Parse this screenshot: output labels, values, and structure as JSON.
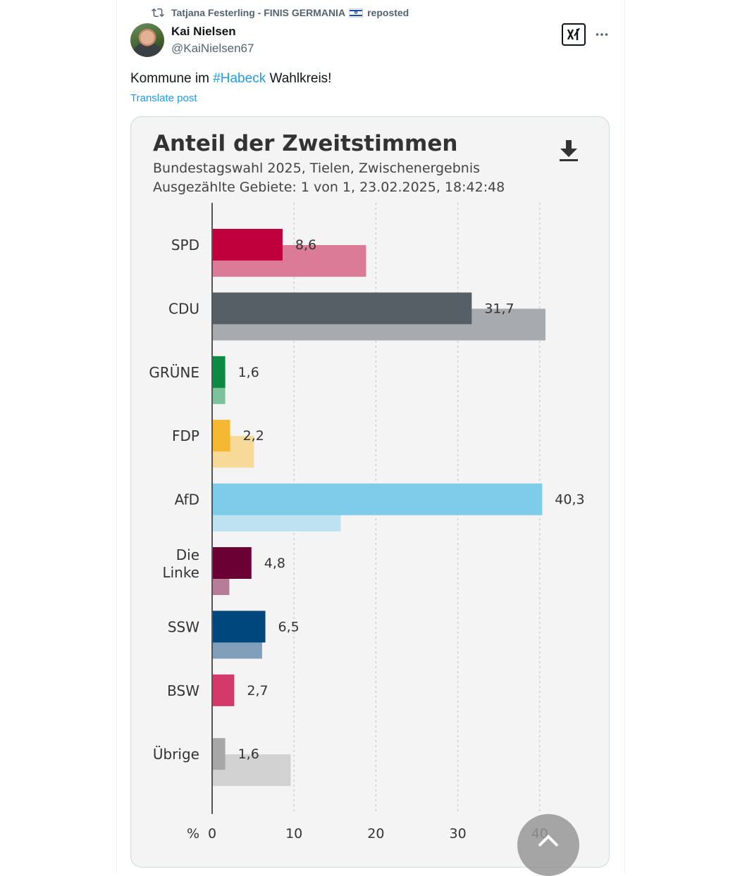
{
  "repost": {
    "user": "Tatjana Festerling - FINIS GERMANIA",
    "suffix": "reposted"
  },
  "author": {
    "name": "Kai Nielsen",
    "handle": "@KaiNielsen67"
  },
  "post": {
    "text_before": "Kommune im ",
    "hashtag": "#Habeck",
    "text_after": " Wahlkreis!",
    "translate_label": "Translate post"
  },
  "card": {
    "title": "Anteil der Zweitstimmen",
    "subtitle1": "Bundestagswahl 2025, Tielen, Zwischenergebnis",
    "subtitle2": "Ausgezählte Gebiete: 1 von 1, 23.02.2025, 18:42:48"
  },
  "chart_data": {
    "type": "bar",
    "orientation": "horizontal",
    "title": "Anteil der Zweitstimmen",
    "xlabel": "%",
    "xlim": [
      0,
      40
    ],
    "xticks": [
      0,
      10,
      20,
      30,
      40
    ],
    "grid": true,
    "categories": [
      {
        "label": [
          "SPD"
        ],
        "value": 8.6,
        "value_label": "8,6",
        "previous": 18.8,
        "color": "#c0003d",
        "prev_color": "#dc7b97"
      },
      {
        "label": [
          "CDU"
        ],
        "value": 31.7,
        "value_label": "31,7",
        "previous": 40.7,
        "color": "#575f66",
        "prev_color": "#a7abae"
      },
      {
        "label": [
          "GRÜNE"
        ],
        "value": 1.6,
        "value_label": "1,6",
        "previous": 1.6,
        "color": "#0a8a42",
        "prev_color": "#7cc39b"
      },
      {
        "label": [
          "FDP"
        ],
        "value": 2.2,
        "value_label": "2,2",
        "previous": 5.1,
        "color": "#f5b833",
        "prev_color": "#f8da98"
      },
      {
        "label": [
          "AfD"
        ],
        "value": 40.3,
        "value_label": "40,3",
        "previous": 15.7,
        "color": "#7fcbea",
        "prev_color": "#bfe2f3"
      },
      {
        "label": [
          "Die",
          "Linke"
        ],
        "value": 4.8,
        "value_label": "4,8",
        "previous": 2.1,
        "color": "#6b0034",
        "prev_color": "#b57d97"
      },
      {
        "label": [
          "SSW"
        ],
        "value": 6.5,
        "value_label": "6,5",
        "previous": 6.1,
        "color": "#00477e",
        "prev_color": "#7f9fba"
      },
      {
        "label": [
          "BSW"
        ],
        "value": 2.7,
        "value_label": "2,7",
        "previous": null,
        "color": "#d23a6a",
        "prev_color": null
      },
      {
        "label": [
          "Übrige"
        ],
        "value": 1.6,
        "value_label": "1,6",
        "previous": 9.6,
        "color": "#a7a7a7",
        "prev_color": "#d2d2d2"
      }
    ]
  }
}
